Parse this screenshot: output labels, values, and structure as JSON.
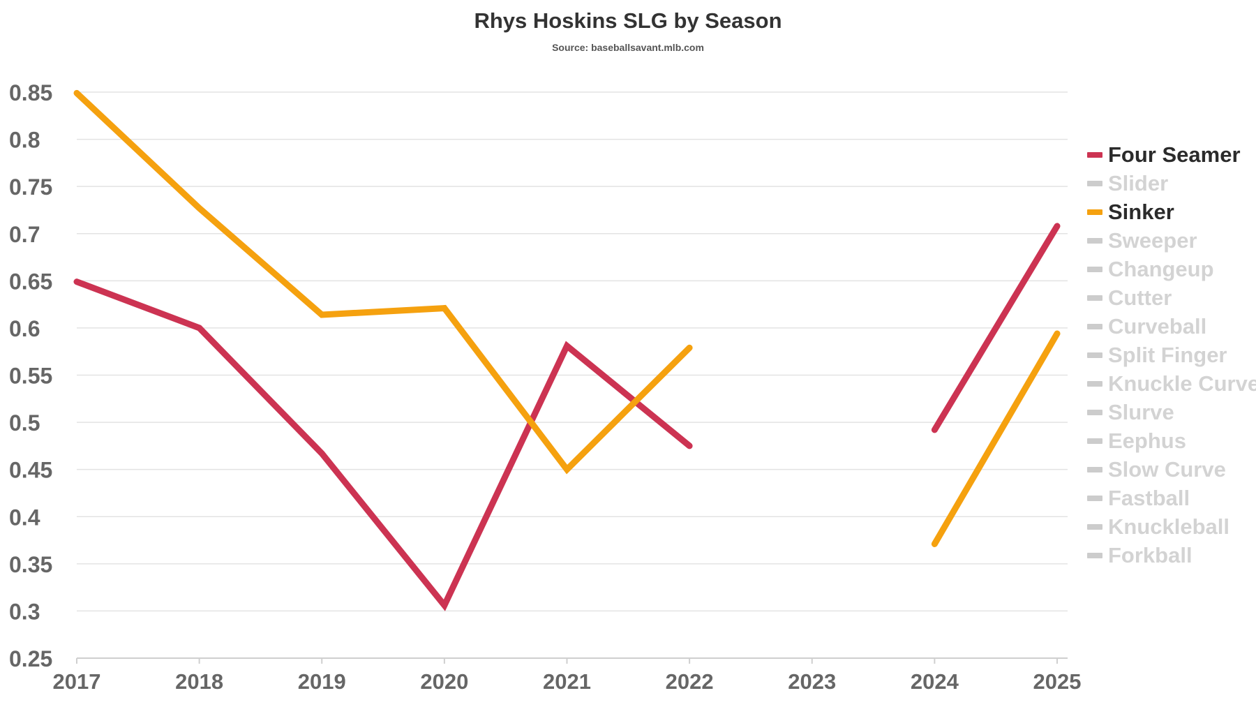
{
  "chart_data": {
    "type": "line",
    "title": "Rhys Hoskins SLG by Season",
    "subtitle": "Source: baseballsavant.mlb.com",
    "xlabel": "",
    "ylabel": "",
    "categories": [
      "2017",
      "2018",
      "2019",
      "2020",
      "2021",
      "2022",
      "2023",
      "2024",
      "2025"
    ],
    "ylim": [
      0.25,
      0.85
    ],
    "yticks": [
      "0.25",
      "0.3",
      "0.35",
      "0.4",
      "0.45",
      "0.5",
      "0.55",
      "0.6",
      "0.65",
      "0.7",
      "0.75",
      "0.8",
      "0.85"
    ],
    "grid": true,
    "legend_position": "right",
    "series": [
      {
        "name": "Four Seamer",
        "color": "#cc3352",
        "active": true,
        "values": [
          0.649,
          0.6,
          0.467,
          0.306,
          0.581,
          0.475,
          null,
          0.492,
          0.708
        ]
      },
      {
        "name": "Sinker",
        "color": "#f5a10f",
        "active": true,
        "values": [
          0.849,
          0.727,
          0.614,
          0.621,
          0.45,
          0.579,
          null,
          0.371,
          0.594
        ]
      }
    ],
    "legend": [
      {
        "name": "Four Seamer",
        "color": "#cc3352",
        "active": true
      },
      {
        "name": "Slider",
        "color": "#cccccc",
        "active": false
      },
      {
        "name": "Sinker",
        "color": "#f5a10f",
        "active": true
      },
      {
        "name": "Sweeper",
        "color": "#cccccc",
        "active": false
      },
      {
        "name": "Changeup",
        "color": "#cccccc",
        "active": false
      },
      {
        "name": "Cutter",
        "color": "#cccccc",
        "active": false
      },
      {
        "name": "Curveball",
        "color": "#cccccc",
        "active": false
      },
      {
        "name": "Split Finger",
        "color": "#cccccc",
        "active": false
      },
      {
        "name": "Knuckle Curve",
        "color": "#cccccc",
        "active": false
      },
      {
        "name": "Slurve",
        "color": "#cccccc",
        "active": false
      },
      {
        "name": "Eephus",
        "color": "#cccccc",
        "active": false
      },
      {
        "name": "Slow Curve",
        "color": "#cccccc",
        "active": false
      },
      {
        "name": "Fastball",
        "color": "#cccccc",
        "active": false
      },
      {
        "name": "Knuckleball",
        "color": "#cccccc",
        "active": false
      },
      {
        "name": "Forkball",
        "color": "#cccccc",
        "active": false
      }
    ]
  }
}
